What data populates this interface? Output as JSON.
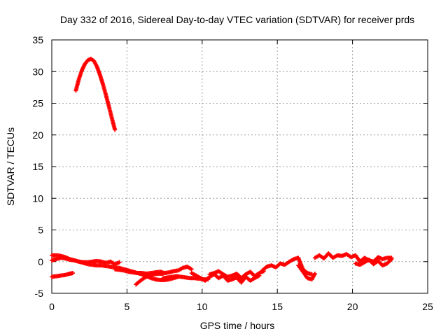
{
  "chart_data": {
    "type": "scatter",
    "title": "Day 332 of 2016, Sidereal Day-to-day VTEC variation (SDTVAR) for receiver prds",
    "xlabel": "GPS time / hours",
    "ylabel": "SDTVAR / TECUs",
    "xlim": [
      0,
      25
    ],
    "ylim": [
      -5,
      35
    ],
    "xticks": [
      0,
      5,
      10,
      15,
      20,
      25
    ],
    "yticks": [
      -5,
      0,
      5,
      10,
      15,
      20,
      25,
      30,
      35
    ],
    "xtick_labels": [
      "0",
      "5",
      "10",
      "15",
      "20",
      "25"
    ],
    "ytick_labels": [
      "-5",
      "0",
      "5",
      "10",
      "15",
      "20",
      "25",
      "30",
      "35"
    ],
    "grid": true,
    "series": [
      {
        "name": "SDTVAR",
        "color": "#ff0000",
        "marker": "plus",
        "segments": [
          {
            "x": [
              1.6,
              1.8,
              2.0,
              2.2,
              2.4,
              2.6,
              2.8,
              3.0,
              3.2,
              3.4,
              3.6,
              3.8,
              4.0,
              4.2
            ],
            "y": [
              27.0,
              28.8,
              30.2,
              31.2,
              31.8,
              32.0,
              31.7,
              30.8,
              29.5,
              28.0,
              26.3,
              24.5,
              22.6,
              20.8
            ]
          },
          {
            "x": [
              0.0,
              0.3,
              0.6,
              0.9,
              1.2,
              1.5,
              1.8,
              2.1,
              2.4,
              2.7,
              3.0,
              3.3,
              3.6,
              3.9,
              4.2,
              4.5,
              4.8,
              5.1,
              5.4,
              5.7,
              6.0,
              6.3,
              6.6,
              6.9,
              7.2,
              7.5,
              7.8,
              8.1,
              8.4
            ],
            "y": [
              1.0,
              1.0,
              0.9,
              0.7,
              0.4,
              0.2,
              0.0,
              -0.2,
              -0.4,
              -0.5,
              -0.6,
              -0.6,
              -0.7,
              -0.8,
              -0.9,
              -1.0,
              -1.2,
              -1.4,
              -1.6,
              -1.8,
              -2.0,
              -2.3,
              -2.6,
              -2.8,
              -2.9,
              -2.9,
              -2.8,
              -2.6,
              -2.4
            ]
          },
          {
            "x": [
              0.0,
              0.3,
              0.6,
              0.9,
              1.2,
              1.5,
              1.8,
              2.1,
              2.4,
              2.7,
              3.0,
              3.3,
              3.6,
              3.9,
              4.2,
              4.5
            ],
            "y": [
              0.2,
              0.4,
              0.6,
              0.5,
              0.3,
              0.2,
              0.0,
              -0.1,
              -0.1,
              0.0,
              0.1,
              0.0,
              -0.2,
              0.0,
              -0.4,
              -0.1
            ]
          },
          {
            "x": [
              0.0,
              0.3,
              0.6,
              0.9,
              1.2,
              1.4
            ],
            "y": [
              -2.4,
              -2.3,
              -2.2,
              -2.1,
              -1.9,
              -1.8
            ]
          },
          {
            "x": [
              4.2,
              4.5,
              4.8,
              5.1,
              5.4,
              5.7,
              6.0,
              6.3,
              6.6,
              6.9,
              7.2,
              7.5,
              7.8,
              8.1,
              8.4,
              8.7,
              9.0,
              9.3
            ],
            "y": [
              -1.2,
              -1.3,
              -1.4,
              -1.6,
              -1.7,
              -1.8,
              -1.8,
              -1.9,
              -1.8,
              -1.7,
              -1.6,
              -1.8,
              -1.7,
              -1.5,
              -1.4,
              -1.0,
              -0.8,
              -1.2
            ]
          },
          {
            "x": [
              5.6,
              5.9,
              6.2,
              6.5,
              6.8,
              7.1,
              7.4
            ],
            "y": [
              -3.6,
              -3.0,
              -2.5,
              -2.2,
              -2.0,
              -1.9,
              -1.9
            ]
          },
          {
            "x": [
              7.4,
              7.7,
              8.0,
              8.3,
              8.6,
              8.9,
              9.2,
              9.5,
              9.8,
              10.1,
              10.4
            ],
            "y": [
              -2.6,
              -2.5,
              -2.4,
              -2.3,
              -2.4,
              -2.5,
              -2.6,
              -2.6,
              -2.7,
              -2.8,
              -2.8
            ]
          },
          {
            "x": [
              9.3,
              9.6,
              9.9,
              10.2,
              10.5,
              10.8,
              11.1,
              11.4,
              11.7,
              12.0,
              12.3,
              12.6,
              12.9,
              13.2,
              13.5,
              13.8
            ],
            "y": [
              -1.8,
              -2.2,
              -2.6,
              -3.0,
              -2.4,
              -2.0,
              -2.6,
              -2.2,
              -3.0,
              -2.8,
              -2.5,
              -3.3,
              -2.4,
              -3.0,
              -2.6,
              -2.2
            ]
          },
          {
            "x": [
              10.5,
              10.8,
              11.1,
              11.4,
              11.7,
              12.0,
              12.3,
              12.6,
              12.9,
              13.2,
              13.5,
              13.8,
              14.1
            ],
            "y": [
              -2.0,
              -1.8,
              -1.5,
              -2.0,
              -2.4,
              -2.2,
              -1.9,
              -2.6,
              -2.0,
              -1.6,
              -2.3,
              -1.8,
              -1.5
            ]
          },
          {
            "x": [
              14.0,
              14.3,
              14.6,
              14.9,
              15.2,
              15.5,
              15.8,
              16.1,
              16.4,
              16.7,
              17.0,
              17.3
            ],
            "y": [
              -1.4,
              -0.8,
              -0.6,
              -0.9,
              -0.3,
              -0.5,
              0.0,
              0.4,
              0.6,
              -1.2,
              -1.8,
              -2.0
            ]
          },
          {
            "x": [
              16.4,
              16.7,
              17.0,
              17.3,
              17.5
            ],
            "y": [
              -0.6,
              -1.6,
              -2.6,
              -2.8,
              -1.9
            ]
          },
          {
            "x": [
              17.5,
              17.8,
              18.1,
              18.4,
              18.7,
              19.0,
              19.3,
              19.6,
              19.9,
              20.2,
              20.5,
              20.8,
              21.1,
              21.4,
              21.7,
              22.0,
              22.3,
              22.6
            ],
            "y": [
              0.6,
              1.0,
              0.5,
              1.3,
              0.6,
              1.0,
              0.9,
              1.2,
              0.7,
              1.0,
              0.0,
              0.6,
              0.2,
              0.0,
              0.7,
              0.4,
              0.6,
              0.6
            ]
          },
          {
            "x": [
              20.2,
              20.5,
              20.8,
              21.1,
              21.4,
              21.7,
              22.0,
              22.3,
              22.6
            ],
            "y": [
              -0.3,
              -0.5,
              -0.1,
              0.3,
              -0.4,
              0.1,
              -0.6,
              -0.3,
              0.4
            ]
          }
        ]
      }
    ]
  }
}
